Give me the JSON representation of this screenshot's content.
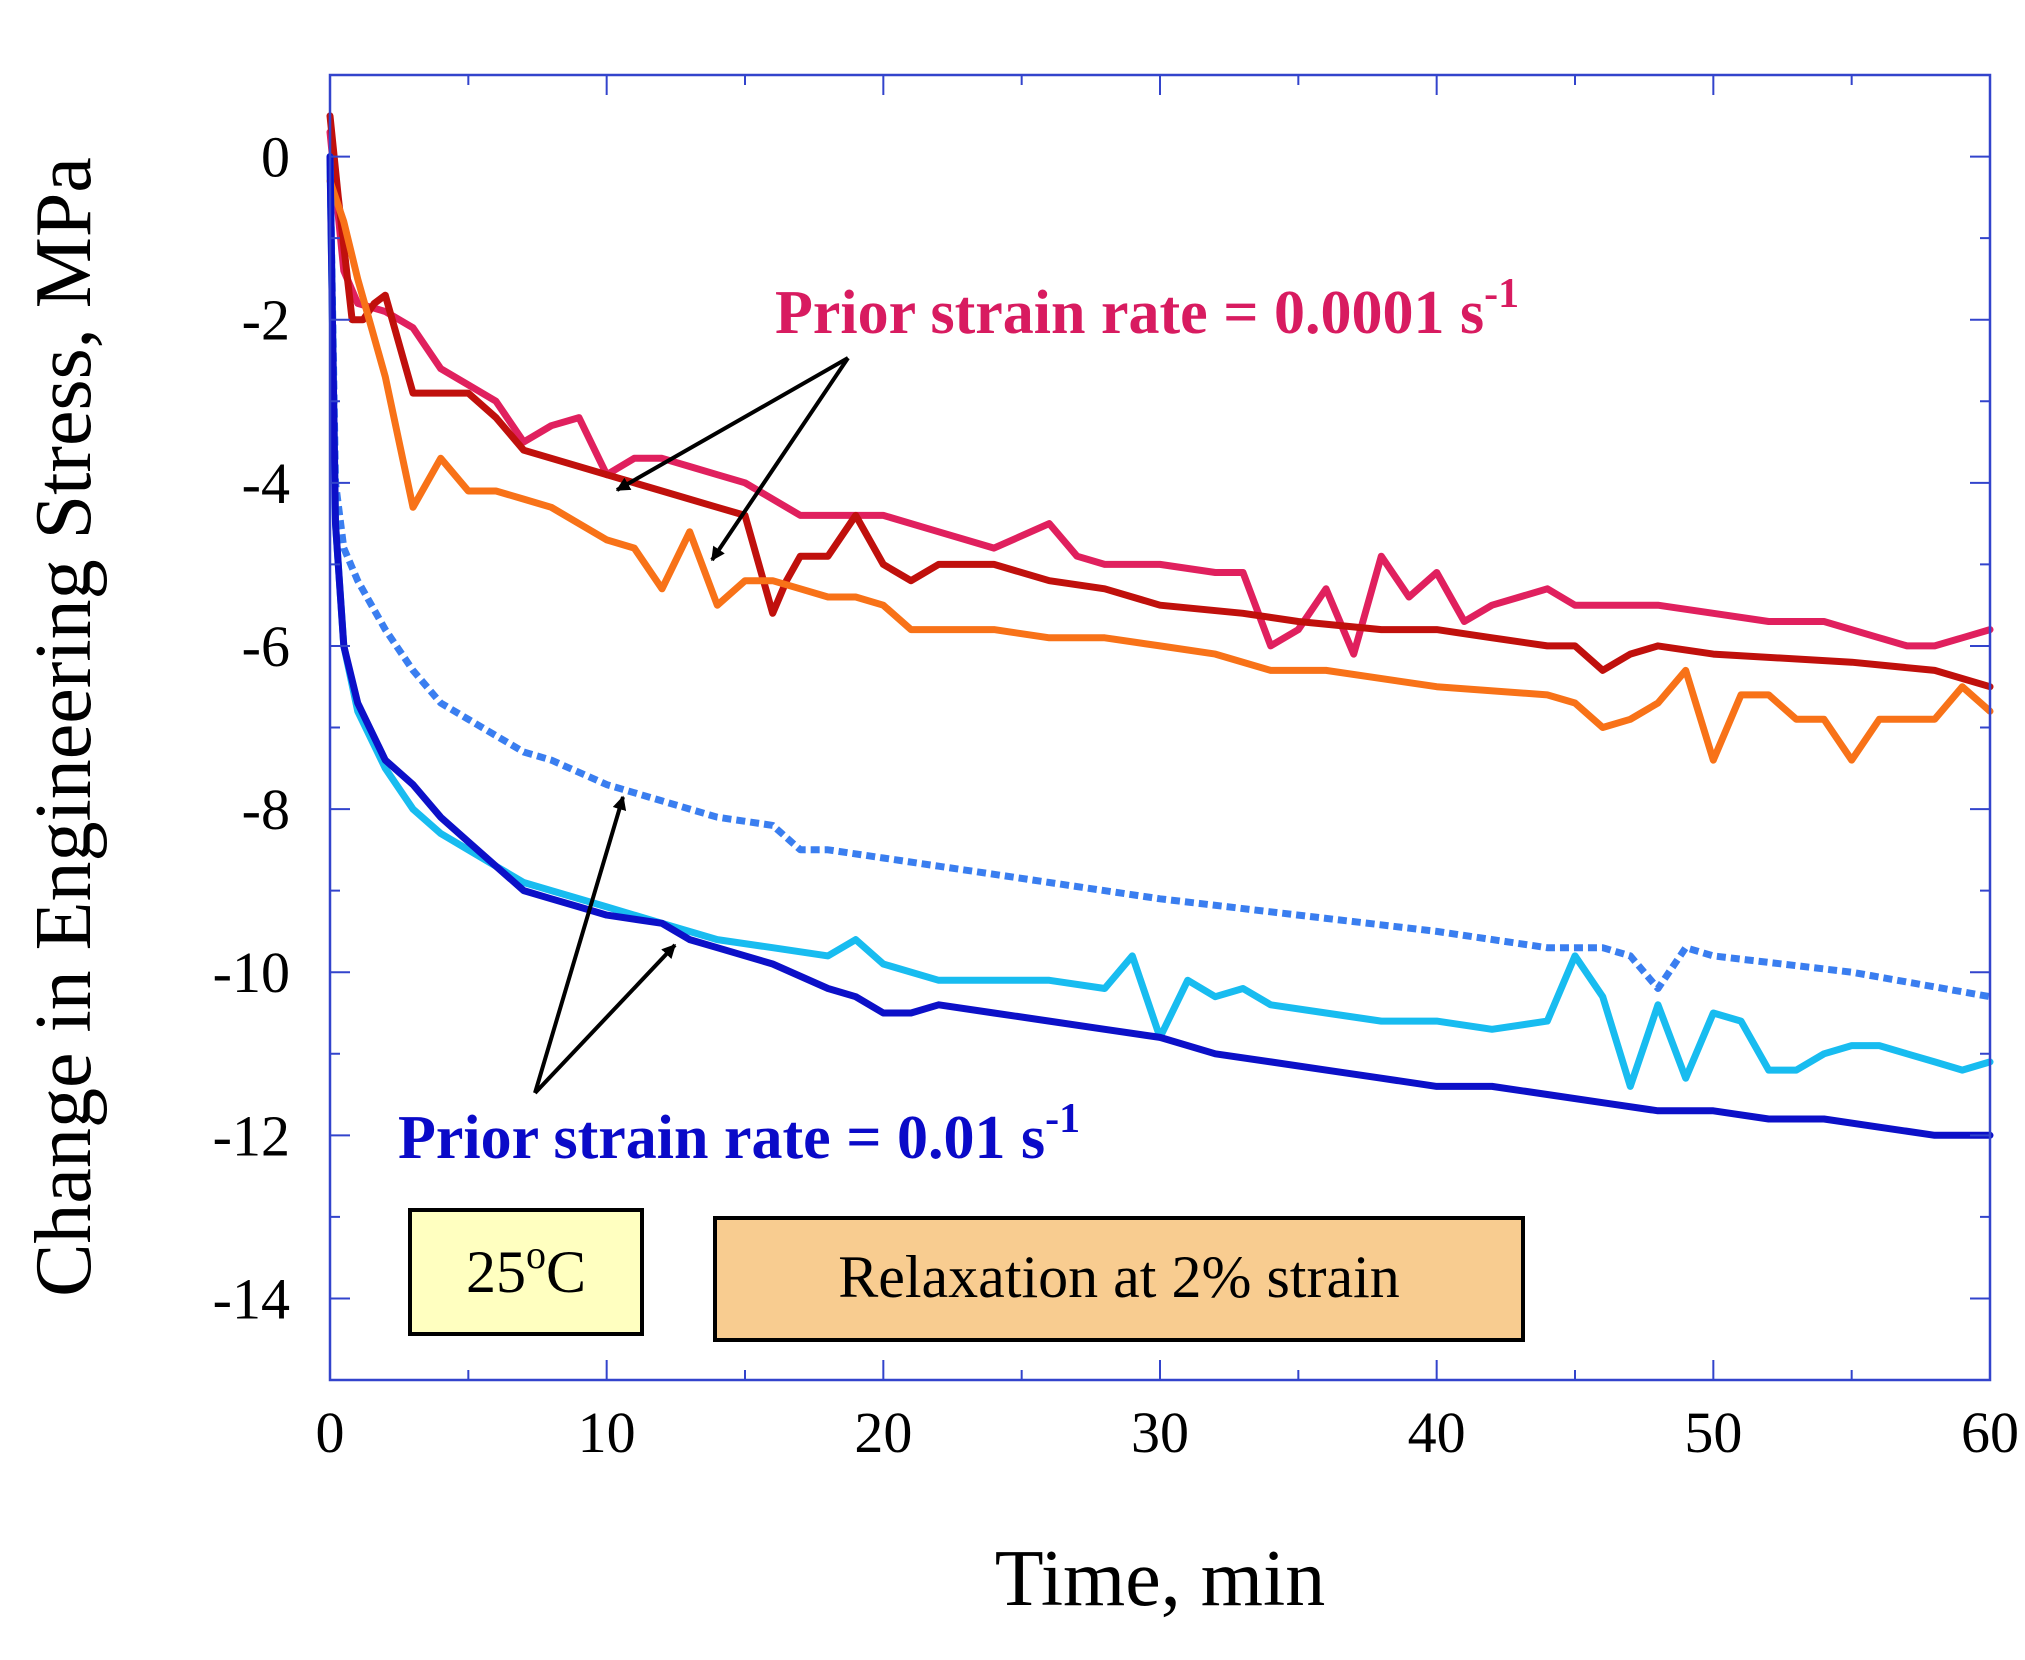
{
  "chart_data": {
    "type": "line",
    "title": "",
    "xlabel": "Time, min",
    "ylabel": "Change in Engineering Stress, MPa",
    "xlim": [
      0,
      60
    ],
    "ylim": [
      -15,
      1
    ],
    "x_ticks": [
      0,
      10,
      20,
      30,
      40,
      50,
      60
    ],
    "y_ticks": [
      0,
      -2,
      -4,
      -6,
      -8,
      -10,
      -12,
      -14
    ],
    "grid": false,
    "colors": {
      "axis": "#3344cc",
      "arrow": "#000000",
      "temp_box_fill": "#ffffc0",
      "relax_box_fill": "#f8cc90"
    },
    "annotations": {
      "slow_label_prefix": "Prior strain rate = 0.0001 s",
      "slow_label_sup": "-1",
      "slow_color": "#d81b60",
      "fast_label_prefix": "Prior strain rate = 0.01 s",
      "fast_label_sup": "-1",
      "fast_color": "#0a0ac8"
    },
    "boxes": {
      "temperature_value": "25",
      "temperature_sup": "o",
      "temperature_unit": "C",
      "condition": "Relaxation at 2% strain"
    },
    "series": [
      {
        "name": "Prior strain rate 0.0001 s^-1 (pink)",
        "color": "#e0205e",
        "dashed": false,
        "x": [
          0,
          0.5,
          1,
          2,
          3,
          4,
          5,
          6,
          7,
          8,
          9,
          10,
          11,
          12,
          13,
          14,
          15,
          16,
          17,
          18,
          19,
          20,
          22,
          24,
          26,
          27,
          28,
          30,
          32,
          33,
          34,
          35,
          36,
          37,
          38,
          39,
          40,
          41,
          42,
          43,
          44,
          45,
          46,
          48,
          50,
          52,
          54,
          56,
          57,
          58,
          59,
          60
        ],
        "y": [
          0.3,
          -1.4,
          -1.8,
          -1.9,
          -2.1,
          -2.6,
          -2.8,
          -3.0,
          -3.5,
          -3.3,
          -3.2,
          -3.9,
          -3.7,
          -3.7,
          -3.8,
          -3.9,
          -4.0,
          -4.2,
          -4.4,
          -4.4,
          -4.4,
          -4.4,
          -4.6,
          -4.8,
          -4.5,
          -4.9,
          -5.0,
          -5.0,
          -5.1,
          -5.1,
          -6.0,
          -5.8,
          -5.3,
          -6.1,
          -4.9,
          -5.4,
          -5.1,
          -5.7,
          -5.5,
          -5.4,
          -5.3,
          -5.5,
          -5.5,
          -5.5,
          -5.6,
          -5.7,
          -5.7,
          -5.9,
          -6.0,
          -6.0,
          -5.9,
          -5.8
        ]
      },
      {
        "name": "Prior strain rate 0.0001 s^-1 (dark red)",
        "color": "#c0100c",
        "dashed": false,
        "x": [
          0,
          0.3,
          0.8,
          1.2,
          1.6,
          2,
          3,
          4,
          5,
          6,
          7,
          8,
          10,
          12,
          14,
          15,
          16,
          16.5,
          17,
          18,
          19,
          20,
          21,
          22,
          24,
          26,
          28,
          30,
          33,
          35,
          38,
          40,
          42,
          44,
          45,
          46,
          47,
          48,
          50,
          55,
          58,
          60
        ],
        "y": [
          0.5,
          -0.5,
          -2.0,
          -2.0,
          -1.8,
          -1.7,
          -2.9,
          -2.9,
          -2.9,
          -3.2,
          -3.6,
          -3.7,
          -3.9,
          -4.1,
          -4.3,
          -4.4,
          -5.6,
          -5.2,
          -4.9,
          -4.9,
          -4.4,
          -5.0,
          -5.2,
          -5.0,
          -5.0,
          -5.2,
          -5.3,
          -5.5,
          -5.6,
          -5.7,
          -5.8,
          -5.8,
          -5.9,
          -6.0,
          -6.0,
          -6.3,
          -6.1,
          -6.0,
          -6.1,
          -6.2,
          -6.3,
          -6.5
        ]
      },
      {
        "name": "Prior strain rate 0.0001 s^-1 (orange)",
        "color": "#f87218",
        "dashed": false,
        "x": [
          0,
          0.5,
          1,
          2,
          3,
          4,
          5,
          6,
          7,
          8,
          9,
          10,
          11,
          12,
          13,
          14,
          15,
          16,
          17,
          18,
          19,
          20,
          21,
          22,
          24,
          26,
          28,
          30,
          32,
          34,
          36,
          40,
          44,
          45,
          46,
          47,
          48,
          49,
          50,
          51,
          52,
          53,
          54,
          55,
          56,
          57,
          58,
          59,
          60
        ],
        "y": [
          -0.3,
          -0.8,
          -1.5,
          -2.7,
          -4.3,
          -3.7,
          -4.1,
          -4.1,
          -4.2,
          -4.3,
          -4.5,
          -4.7,
          -4.8,
          -5.3,
          -4.6,
          -5.5,
          -5.2,
          -5.2,
          -5.3,
          -5.4,
          -5.4,
          -5.5,
          -5.8,
          -5.8,
          -5.8,
          -5.9,
          -5.9,
          -6.0,
          -6.1,
          -6.3,
          -6.3,
          -6.5,
          -6.6,
          -6.7,
          -7.0,
          -6.9,
          -6.7,
          -6.3,
          -7.4,
          -6.6,
          -6.6,
          -6.9,
          -6.9,
          -7.4,
          -6.9,
          -6.9,
          -6.9,
          -6.5,
          -6.8
        ]
      },
      {
        "name": "Prior strain rate 0.01 s^-1 (light blue, dotted)",
        "color": "#3a7ef0",
        "dashed": true,
        "x": [
          0,
          0.2,
          0.5,
          1,
          2,
          3,
          4,
          5,
          6,
          7,
          8,
          10,
          12,
          14,
          16,
          17,
          18,
          20,
          22,
          24,
          26,
          30,
          35,
          40,
          44,
          46,
          47,
          48,
          49,
          50,
          55,
          60
        ],
        "y": [
          0,
          -4.0,
          -4.8,
          -5.2,
          -5.8,
          -6.3,
          -6.7,
          -6.9,
          -7.1,
          -7.3,
          -7.4,
          -7.7,
          -7.9,
          -8.1,
          -8.2,
          -8.5,
          -8.5,
          -8.6,
          -8.7,
          -8.8,
          -8.9,
          -9.1,
          -9.3,
          -9.5,
          -9.7,
          -9.7,
          -9.8,
          -10.2,
          -9.7,
          -9.8,
          -10.0,
          -10.3
        ]
      },
      {
        "name": "Prior strain rate 0.01 s^-1 (cyan)",
        "color": "#18bcf0",
        "dashed": false,
        "x": [
          0,
          0.2,
          0.5,
          1,
          2,
          3,
          4,
          5,
          6,
          7,
          8,
          10,
          12,
          14,
          16,
          18,
          19,
          20,
          22,
          24,
          26,
          28,
          29,
          30,
          31,
          32,
          33,
          34,
          36,
          38,
          40,
          42,
          44,
          45,
          46,
          47,
          48,
          49,
          50,
          51,
          52,
          53,
          54,
          55,
          56,
          57,
          58,
          59,
          60
        ],
        "y": [
          0,
          -4.5,
          -6.0,
          -6.8,
          -7.5,
          -8.0,
          -8.3,
          -8.5,
          -8.7,
          -8.9,
          -9.0,
          -9.2,
          -9.4,
          -9.6,
          -9.7,
          -9.8,
          -9.6,
          -9.9,
          -10.1,
          -10.1,
          -10.1,
          -10.2,
          -9.8,
          -10.8,
          -10.1,
          -10.3,
          -10.2,
          -10.4,
          -10.5,
          -10.6,
          -10.6,
          -10.7,
          -10.6,
          -9.8,
          -10.3,
          -11.4,
          -10.4,
          -11.3,
          -10.5,
          -10.6,
          -11.2,
          -11.2,
          -11.0,
          -10.9,
          -10.9,
          -11.0,
          -11.1,
          -11.2,
          -11.1
        ]
      },
      {
        "name": "Prior strain rate 0.01 s^-1 (dark blue)",
        "color": "#0c10c8",
        "dashed": false,
        "x": [
          0,
          0.2,
          0.5,
          1,
          2,
          3,
          4,
          5,
          6,
          7,
          8,
          9,
          10,
          12,
          13,
          14,
          16,
          18,
          19,
          20,
          21,
          22,
          24,
          26,
          28,
          30,
          32,
          34,
          36,
          38,
          40,
          42,
          44,
          46,
          48,
          50,
          52,
          54,
          56,
          58,
          60
        ],
        "y": [
          0,
          -4.5,
          -6.0,
          -6.7,
          -7.4,
          -7.7,
          -8.1,
          -8.4,
          -8.7,
          -9.0,
          -9.1,
          -9.2,
          -9.3,
          -9.4,
          -9.6,
          -9.7,
          -9.9,
          -10.2,
          -10.3,
          -10.5,
          -10.5,
          -10.4,
          -10.5,
          -10.6,
          -10.7,
          -10.8,
          -11.0,
          -11.1,
          -11.2,
          -11.3,
          -11.4,
          -11.4,
          -11.5,
          -11.6,
          -11.7,
          -11.7,
          -11.8,
          -11.8,
          -11.9,
          -12.0,
          -12.0
        ]
      }
    ]
  }
}
